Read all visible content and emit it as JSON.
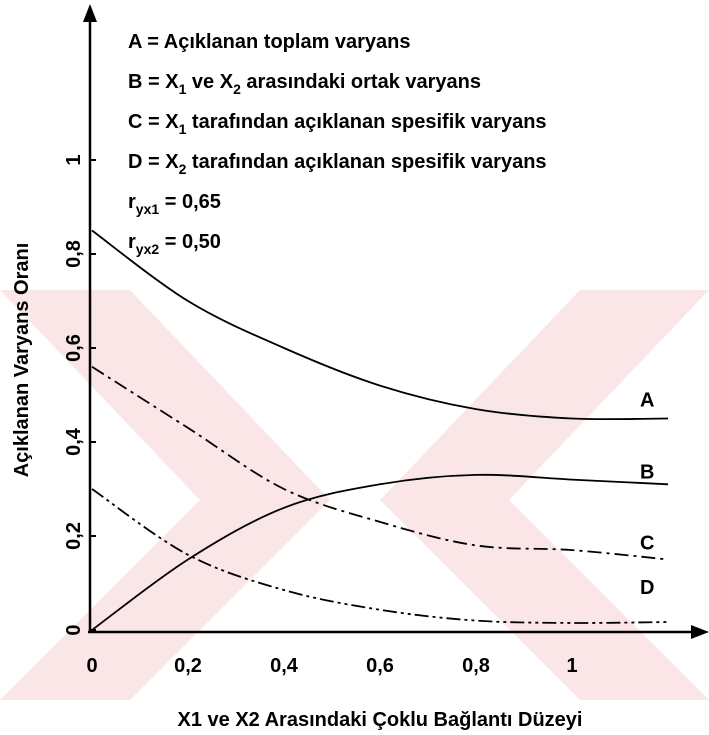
{
  "chart_data": {
    "type": "line",
    "xlabel": "X1 ve X2 Arasındaki Çoklu Bağlantı Düzeyi",
    "ylabel": "Açıklanan Varyans Oranı",
    "annotations": [
      [
        "A = Açıklanan toplam varyans"
      ],
      [
        "B = X",
        "1",
        "  ve X",
        "2",
        "  arasındaki ortak varyans"
      ],
      [
        "C = X",
        "1",
        " tarafından açıklanan spesifik varyans"
      ],
      [
        "D = X",
        "2",
        " tarafından açıklanan spesifik varyans"
      ],
      [
        "r",
        "yx1",
        " = 0,65"
      ],
      [
        "r",
        "yx2",
        " = 0,50"
      ]
    ],
    "x": [
      0,
      0.2,
      0.4,
      0.6,
      0.8,
      1.0,
      1.2
    ],
    "series": [
      {
        "name": "A",
        "color": "#000000",
        "dash": "solid",
        "values": [
          0.85,
          0.7,
          0.6,
          0.52,
          0.47,
          0.45,
          0.45
        ]
      },
      {
        "name": "B",
        "color": "#000000",
        "dash": "solid",
        "values": [
          0,
          0.15,
          0.26,
          0.31,
          0.33,
          0.32,
          0.31
        ]
      },
      {
        "name": "C",
        "color": "#000000",
        "dash": "dash-dot",
        "values": [
          0.56,
          0.43,
          0.3,
          0.23,
          0.18,
          0.17,
          0.15
        ]
      },
      {
        "name": "D",
        "color": "#000000",
        "dash": "dash-dot-dot",
        "values": [
          0.3,
          0.16,
          0.085,
          0.043,
          0.02,
          0.015,
          0.017
        ]
      }
    ],
    "xlim": [
      0,
      1.25
    ],
    "ylim": [
      0,
      1.3
    ],
    "xticks": [
      0,
      {
        "value": 0.2,
        "label": "0,2"
      },
      {
        "value": 0.4,
        "label": "0,4"
      },
      {
        "value": 0.6,
        "label": "0,6"
      },
      {
        "value": 0.8,
        "label": "0,8"
      },
      1
    ],
    "yticks": [
      0,
      {
        "value": 0.2,
        "label": "0,2"
      },
      {
        "value": 0.4,
        "label": "0,4"
      },
      {
        "value": 0.6,
        "label": "0,6"
      },
      {
        "value": 0.8,
        "label": "0,8"
      },
      1
    ],
    "grid": false
  }
}
